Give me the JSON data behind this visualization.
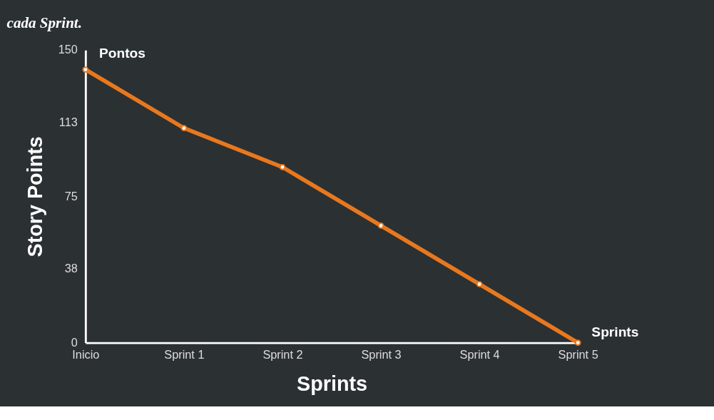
{
  "chart_data": {
    "type": "line",
    "xlabel": "Sprints",
    "ylabel": "Story Points",
    "categories": [
      "Inicio",
      "Sprint 1",
      "Sprint 2",
      "Sprint 3",
      "Sprint 4",
      "Sprint 5"
    ],
    "series": [
      {
        "color": "#e8781e",
        "values": [
          140,
          110,
          90,
          60,
          30,
          0
        ]
      }
    ],
    "ylim": [
      0,
      150
    ],
    "yticks": [
      0,
      38,
      75,
      113,
      150
    ],
    "marker": "circle",
    "line_style": "solid",
    "grid": false,
    "legend": false,
    "annotations": [
      "cada Sprint.",
      "Pontos",
      "Sprints"
    ]
  }
}
